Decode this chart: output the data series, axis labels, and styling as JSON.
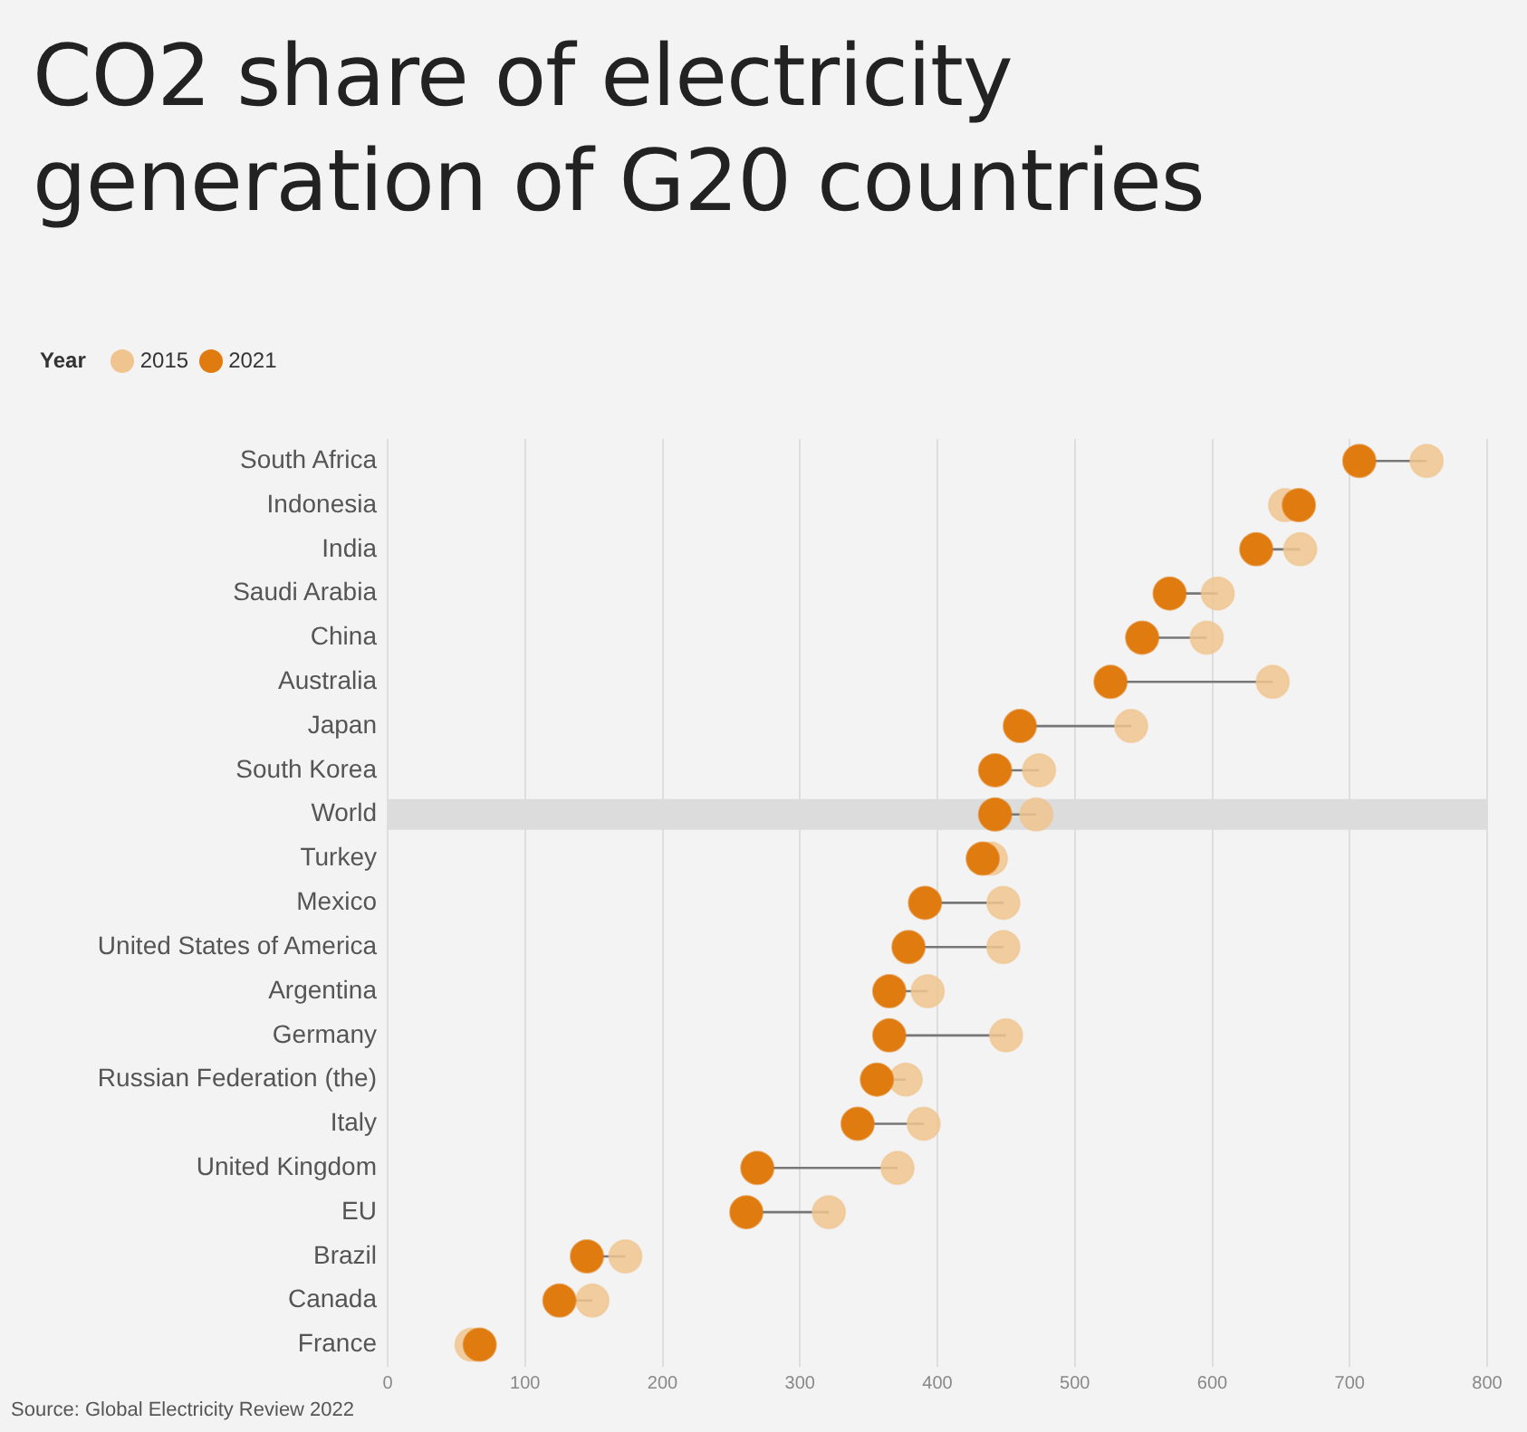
{
  "chart_data": {
    "type": "scatter",
    "title": "CO2 share of electricity generation of G20 countries",
    "orientation": "horizontal",
    "legend_title": "Year",
    "legend": "top left",
    "categories": [
      "South Africa",
      "Indonesia",
      "India",
      "Saudi Arabia",
      "China",
      "Australia",
      "Japan",
      "South Korea",
      "World",
      "Turkey",
      "Mexico",
      "United States of America",
      "Argentina",
      "Germany",
      "Russian Federation (the)",
      "Italy",
      "United Kingdom",
      "EU",
      "Brazil",
      "Canada",
      "France"
    ],
    "series": [
      {
        "name": "2015",
        "color": "#f0c48e",
        "values": [
          756,
          653,
          664,
          604,
          596,
          644,
          541,
          474,
          472,
          439,
          448,
          448,
          393,
          450,
          377,
          390,
          371,
          321,
          173,
          149,
          61
        ]
      },
      {
        "name": "2021",
        "color": "#e07b10",
        "values": [
          707,
          663,
          632,
          569,
          549,
          526,
          460,
          442,
          442,
          433,
          391,
          379,
          365,
          365,
          356,
          342,
          269,
          261,
          145,
          125,
          67
        ]
      }
    ],
    "xlim": [
      0,
      800
    ],
    "xticks": [
      0,
      100,
      200,
      300,
      400,
      500,
      600,
      700,
      800
    ],
    "grid": "x",
    "marker": "circle",
    "bands": [
      {
        "axis": "y",
        "from": "World",
        "to": "World",
        "color": "#dcdcdc"
      }
    ],
    "annotations": [
      "Source: Global Electricity Review 2022"
    ]
  }
}
